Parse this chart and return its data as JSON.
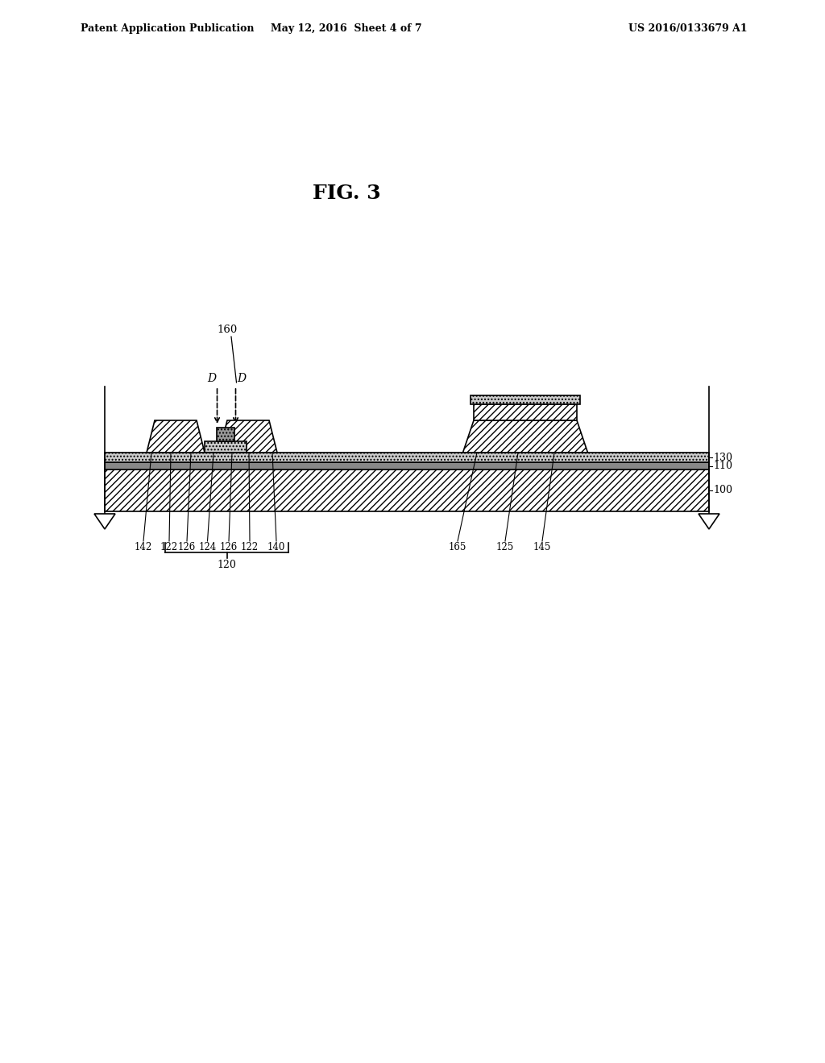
{
  "title": "FIG. 3",
  "header_left": "Patent Application Publication",
  "header_center": "May 12, 2016  Sheet 4 of 7",
  "header_right": "US 2016/0133679 A1",
  "bg_color": "#ffffff",
  "line_color": "#000000"
}
